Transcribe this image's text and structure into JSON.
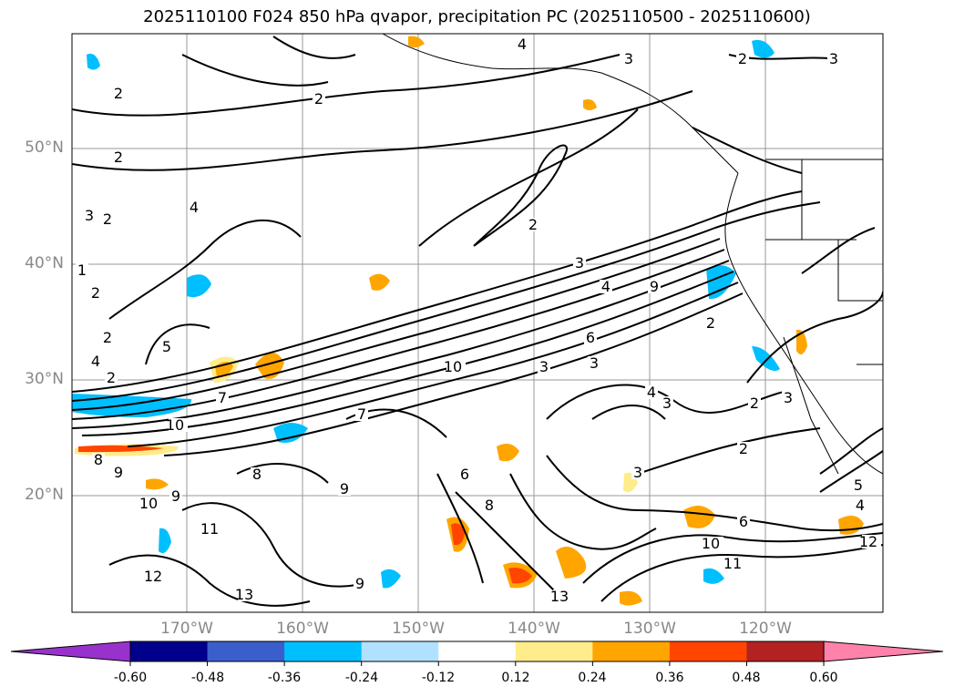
{
  "title": "2025110100 F024 850 hPa qvapor, precipitation PC (2025110500 - 2025110600)",
  "map": {
    "lat_labels": [
      "50°N",
      "40°N",
      "30°N",
      "20°N"
    ],
    "lon_labels": [
      "170°W",
      "160°W",
      "150°W",
      "140°W",
      "130°W",
      "120°W"
    ],
    "contour_labels": [
      "4",
      "3",
      "2",
      "2",
      "3",
      "2",
      "2",
      "4",
      "3",
      "2",
      "2",
      "3",
      "4",
      "9",
      "1",
      "2",
      "2",
      "5",
      "4",
      "2",
      "10",
      "3",
      "3",
      "4",
      "2",
      "3",
      "2",
      "7",
      "10",
      "7",
      "9",
      "8",
      "8",
      "6",
      "8",
      "9",
      "10",
      "9",
      "3",
      "2",
      "6",
      "10",
      "11",
      "12",
      "13",
      "9",
      "13",
      "11",
      "12",
      "5",
      "4",
      "3",
      "6"
    ],
    "coastline_color": "#000000",
    "contour_color": "#000000",
    "grid_color": "#999999"
  },
  "colorbar": {
    "ticks": [
      "-0.60",
      "-0.48",
      "-0.36",
      "-0.24",
      "-0.12",
      "0.12",
      "0.24",
      "0.36",
      "0.48",
      "0.60"
    ],
    "colors": [
      "#9932cc",
      "#00008b",
      "#3a5fcd",
      "#00bfff",
      "#b0e2ff",
      "#ffffff",
      "#ffec8b",
      "#ffa500",
      "#ff4500",
      "#b22222",
      "#ff82ab"
    ],
    "extend": "both"
  }
}
